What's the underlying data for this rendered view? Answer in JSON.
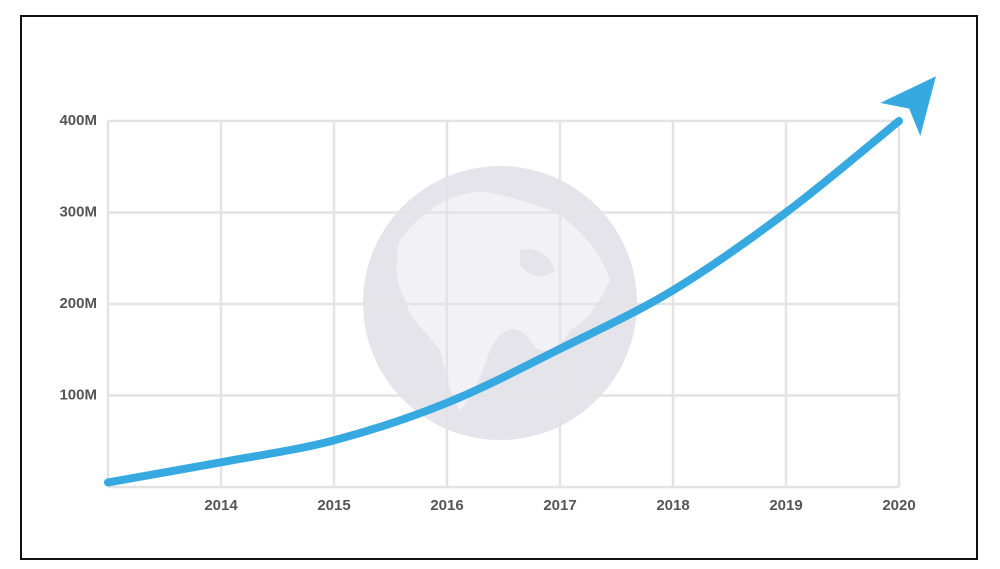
{
  "chart_data": {
    "type": "line",
    "x": [
      2013,
      2014,
      2015,
      2016,
      2017,
      2018,
      2019,
      2020
    ],
    "series": [
      {
        "color": "#36a9e1",
        "values": [
          5,
          27,
          51,
          92,
          151,
          215,
          300,
          400
        ]
      }
    ],
    "xlim": [
      2013,
      2020
    ],
    "xticks": [
      2014,
      2015,
      2016,
      2017,
      2018,
      2019,
      2020
    ],
    "ylim": [
      0,
      400
    ],
    "yticks": [
      {
        "value": 100,
        "label": "100M"
      },
      {
        "value": 200,
        "label": "200M"
      },
      {
        "value": 300,
        "label": "300M"
      },
      {
        "value": 400,
        "label": "400M"
      }
    ],
    "grid": true
  }
}
